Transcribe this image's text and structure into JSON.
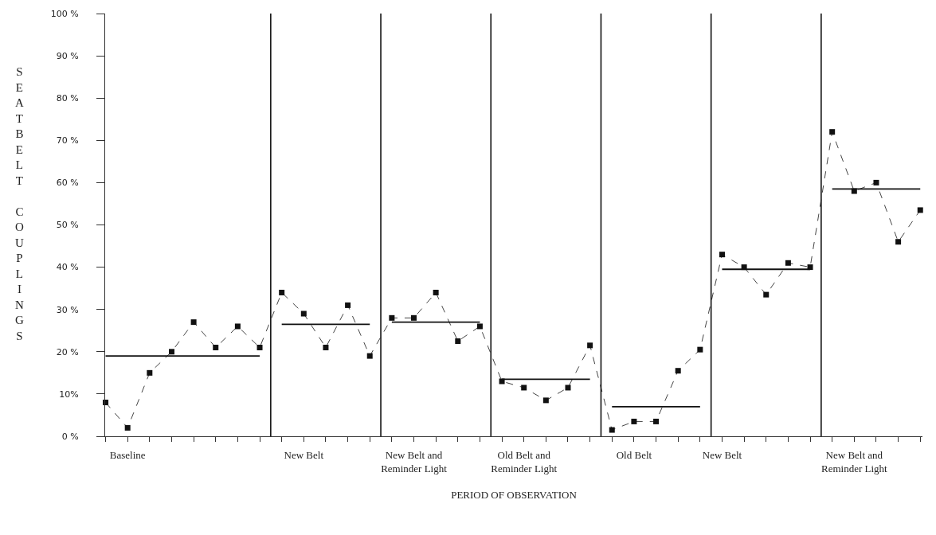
{
  "chart_data": {
    "type": "line",
    "xlabel": "PERIOD OF OBSERVATION",
    "ylabel": "SEATBELT COUPLINGS",
    "categories": [
      null,
      "Baseline",
      null,
      null,
      null,
      null,
      null,
      null,
      null,
      "New Belt",
      null,
      null,
      null,
      null,
      "New Belt and\nReminder Light",
      null,
      null,
      null,
      null,
      "Old Belt and\nReminder Light",
      null,
      null,
      null,
      null,
      "Old Belt",
      null,
      null,
      null,
      "New Belt",
      null,
      null,
      null,
      null,
      null,
      "New Belt and\nReminder Light",
      null,
      null,
      null
    ],
    "series": [
      {
        "color": "#444444",
        "marker": "square",
        "line_style": "dashed",
        "values": [
          8,
          2,
          15,
          20,
          27,
          21,
          26,
          21,
          34,
          29,
          21,
          31,
          19,
          28,
          28,
          34,
          22.5,
          26,
          13,
          11.5,
          8.5,
          11.5,
          21.5,
          1.5,
          3.5,
          3.5,
          15.5,
          20.5,
          43,
          40,
          33.5,
          41,
          40,
          72,
          58,
          60,
          46,
          53.5
        ]
      },
      {
        "color": "#111111",
        "marker": "none",
        "line_style": "solid",
        "values": [
          19,
          19,
          19,
          19,
          19,
          19,
          19,
          19,
          null,
          null,
          null,
          null,
          null,
          null,
          null,
          null,
          null,
          null,
          null,
          null,
          null,
          null,
          null,
          null,
          null,
          null,
          null,
          null,
          null,
          null,
          null,
          null,
          null,
          null,
          null,
          null,
          null,
          null
        ]
      },
      {
        "color": "#111111",
        "marker": "none",
        "line_style": "solid",
        "values": [
          null,
          null,
          null,
          null,
          null,
          null,
          null,
          null,
          26.5,
          26.5,
          26.5,
          26.5,
          26.5,
          null,
          null,
          null,
          null,
          null,
          null,
          null,
          null,
          null,
          null,
          null,
          null,
          null,
          null,
          null,
          null,
          null,
          null,
          null,
          null,
          null,
          null,
          null,
          null,
          null
        ]
      },
      {
        "color": "#111111",
        "marker": "none",
        "line_style": "solid",
        "values": [
          null,
          null,
          null,
          null,
          null,
          null,
          null,
          null,
          null,
          null,
          null,
          null,
          null,
          27,
          27,
          27,
          27,
          27,
          null,
          null,
          null,
          null,
          null,
          null,
          null,
          null,
          null,
          null,
          null,
          null,
          null,
          null,
          null,
          null,
          null,
          null,
          null,
          null
        ]
      },
      {
        "color": "#111111",
        "marker": "none",
        "line_style": "solid",
        "values": [
          null,
          null,
          null,
          null,
          null,
          null,
          null,
          null,
          null,
          null,
          null,
          null,
          null,
          null,
          null,
          null,
          null,
          null,
          13.5,
          13.5,
          13.5,
          13.5,
          13.5,
          null,
          null,
          null,
          null,
          null,
          null,
          null,
          null,
          null,
          null,
          null,
          null,
          null,
          null,
          null
        ]
      },
      {
        "color": "#111111",
        "marker": "none",
        "line_style": "solid",
        "values": [
          null,
          null,
          null,
          null,
          null,
          null,
          null,
          null,
          null,
          null,
          null,
          null,
          null,
          null,
          null,
          null,
          null,
          null,
          null,
          null,
          null,
          null,
          null,
          7,
          7,
          7,
          7,
          7,
          null,
          null,
          null,
          null,
          null,
          null,
          null,
          null,
          null,
          null
        ]
      },
      {
        "color": "#111111",
        "marker": "none",
        "line_style": "solid",
        "values": [
          null,
          null,
          null,
          null,
          null,
          null,
          null,
          null,
          null,
          null,
          null,
          null,
          null,
          null,
          null,
          null,
          null,
          null,
          null,
          null,
          null,
          null,
          null,
          null,
          null,
          null,
          null,
          null,
          39.5,
          39.5,
          39.5,
          39.5,
          39.5,
          null,
          null,
          null,
          null,
          null
        ]
      },
      {
        "color": "#111111",
        "marker": "none",
        "line_style": "solid",
        "values": [
          null,
          null,
          null,
          null,
          null,
          null,
          null,
          null,
          null,
          null,
          null,
          null,
          null,
          null,
          null,
          null,
          null,
          null,
          null,
          null,
          null,
          null,
          null,
          null,
          null,
          null,
          null,
          null,
          null,
          null,
          null,
          null,
          null,
          58.5,
          58.5,
          58.5,
          58.5,
          58.5
        ]
      }
    ],
    "ylim": [
      0,
      100
    ],
    "yticks": [
      {
        "value": 0,
        "label": "0 %"
      },
      {
        "value": 10,
        "label": "10%"
      },
      {
        "value": 20,
        "label": "20 %"
      },
      {
        "value": 30,
        "label": "30 %"
      },
      {
        "value": 40,
        "label": "40 %"
      },
      {
        "value": 50,
        "label": "50 %"
      },
      {
        "value": 60,
        "label": "60 %"
      },
      {
        "value": 70,
        "label": "70 %"
      },
      {
        "value": 80,
        "label": "80 %"
      },
      {
        "value": 90,
        "label": "90 %"
      },
      {
        "value": 100,
        "label": "100 %"
      }
    ]
  }
}
